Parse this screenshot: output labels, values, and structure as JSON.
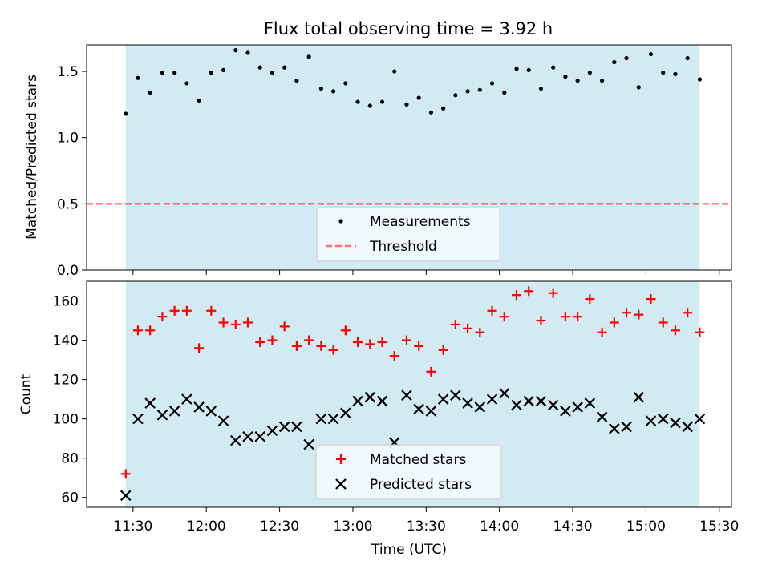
{
  "title": "Flux total observing time = 3.92 h",
  "colors": {
    "observing_window": "#add8e6",
    "measurements": "#000000",
    "threshold": "#ff0000",
    "matched": "#ff0000",
    "predicted": "#000000",
    "legend_bg": "#f6fbfd"
  },
  "chart_data": [
    {
      "type": "scatter",
      "xlabel": "",
      "ylabel": "Matched/Predicted stars",
      "ylim": [
        0,
        1.7
      ],
      "yticks": [
        "0.0",
        "0.5",
        "1.0",
        "1.5"
      ],
      "xlim": [
        "11:11",
        "15:35"
      ],
      "xticks": [
        "11:30",
        "12:00",
        "12:30",
        "13:00",
        "13:30",
        "14:00",
        "14:30",
        "15:00",
        "15:30"
      ],
      "show_xtick_labels": false,
      "observing_window": [
        "11:27",
        "15:22"
      ],
      "grid": false,
      "legend_position": "lower center",
      "series": [
        {
          "name": "Measurements",
          "marker": "dot",
          "x": [
            "11:27",
            "11:32",
            "11:37",
            "11:42",
            "11:47",
            "11:52",
            "11:57",
            "12:02",
            "12:07",
            "12:12",
            "12:17",
            "12:22",
            "12:27",
            "12:32",
            "12:37",
            "12:42",
            "12:47",
            "12:52",
            "12:57",
            "13:02",
            "13:07",
            "13:12",
            "13:17",
            "13:22",
            "13:27",
            "13:32",
            "13:37",
            "13:42",
            "13:47",
            "13:52",
            "13:57",
            "14:02",
            "14:07",
            "14:12",
            "14:17",
            "14:22",
            "14:27",
            "14:32",
            "14:37",
            "14:42",
            "14:47",
            "14:52",
            "14:57",
            "15:02",
            "15:07",
            "15:12",
            "15:17",
            "15:22"
          ],
          "y": [
            1.18,
            1.45,
            1.34,
            1.49,
            1.49,
            1.41,
            1.28,
            1.49,
            1.51,
            1.66,
            1.64,
            1.53,
            1.49,
            1.53,
            1.43,
            1.61,
            1.37,
            1.35,
            1.41,
            1.27,
            1.24,
            1.27,
            1.5,
            1.25,
            1.3,
            1.19,
            1.22,
            1.32,
            1.35,
            1.36,
            1.41,
            1.34,
            1.52,
            1.51,
            1.37,
            1.53,
            1.46,
            1.43,
            1.49,
            1.43,
            1.57,
            1.6,
            1.38,
            1.63,
            1.49,
            1.48,
            1.6,
            1.44
          ]
        },
        {
          "name": "Threshold",
          "style": "dashed",
          "y": 0.5
        }
      ]
    },
    {
      "type": "scatter",
      "xlabel": "Time (UTC)",
      "ylabel": "Count",
      "ylim": [
        55,
        170
      ],
      "yticks": [
        "60",
        "80",
        "100",
        "120",
        "140",
        "160"
      ],
      "xlim": [
        "11:11",
        "15:35"
      ],
      "xticks": [
        "11:30",
        "12:00",
        "12:30",
        "13:00",
        "13:30",
        "14:00",
        "14:30",
        "15:00",
        "15:30"
      ],
      "show_xtick_labels": true,
      "observing_window": [
        "11:27",
        "15:22"
      ],
      "grid": false,
      "legend_position": "lower center",
      "series": [
        {
          "name": "Matched stars",
          "marker": "plus",
          "x": [
            "11:27",
            "11:32",
            "11:37",
            "11:42",
            "11:47",
            "11:52",
            "11:57",
            "12:02",
            "12:07",
            "12:12",
            "12:17",
            "12:22",
            "12:27",
            "12:32",
            "12:37",
            "12:42",
            "12:47",
            "12:52",
            "12:57",
            "13:02",
            "13:07",
            "13:12",
            "13:17",
            "13:22",
            "13:27",
            "13:32",
            "13:37",
            "13:42",
            "13:47",
            "13:52",
            "13:57",
            "14:02",
            "14:07",
            "14:12",
            "14:17",
            "14:22",
            "14:27",
            "14:32",
            "14:37",
            "14:42",
            "14:47",
            "14:52",
            "14:57",
            "15:02",
            "15:07",
            "15:12",
            "15:17",
            "15:22"
          ],
          "y": [
            72,
            145,
            145,
            152,
            155,
            155,
            136,
            155,
            149,
            148,
            149,
            139,
            140,
            147,
            137,
            140,
            137,
            135,
            145,
            139,
            138,
            139,
            132,
            140,
            137,
            124,
            135,
            148,
            146,
            144,
            155,
            152,
            163,
            165,
            150,
            164,
            152,
            152,
            161,
            144,
            149,
            154,
            153,
            161,
            149,
            145,
            154,
            144
          ]
        },
        {
          "name": "Predicted stars",
          "marker": "x",
          "x": [
            "11:27",
            "11:32",
            "11:37",
            "11:42",
            "11:47",
            "11:52",
            "11:57",
            "12:02",
            "12:07",
            "12:12",
            "12:17",
            "12:22",
            "12:27",
            "12:32",
            "12:37",
            "12:42",
            "12:47",
            "12:52",
            "12:57",
            "13:02",
            "13:07",
            "13:12",
            "13:17",
            "13:22",
            "13:27",
            "13:32",
            "13:37",
            "13:42",
            "13:47",
            "13:52",
            "13:57",
            "14:02",
            "14:07",
            "14:12",
            "14:17",
            "14:22",
            "14:27",
            "14:32",
            "14:37",
            "14:42",
            "14:47",
            "14:52",
            "14:57",
            "15:02",
            "15:07",
            "15:12",
            "15:17",
            "15:22"
          ],
          "y": [
            61,
            100,
            108,
            102,
            104,
            110,
            106,
            104,
            99,
            89,
            91,
            91,
            94,
            96,
            96,
            87,
            100,
            100,
            103,
            109,
            111,
            109,
            88,
            112,
            105,
            104,
            110,
            112,
            108,
            106,
            110,
            113,
            107,
            109,
            109,
            107,
            104,
            106,
            108,
            101,
            95,
            96,
            111,
            99,
            100,
            98,
            96,
            100
          ]
        }
      ]
    }
  ]
}
